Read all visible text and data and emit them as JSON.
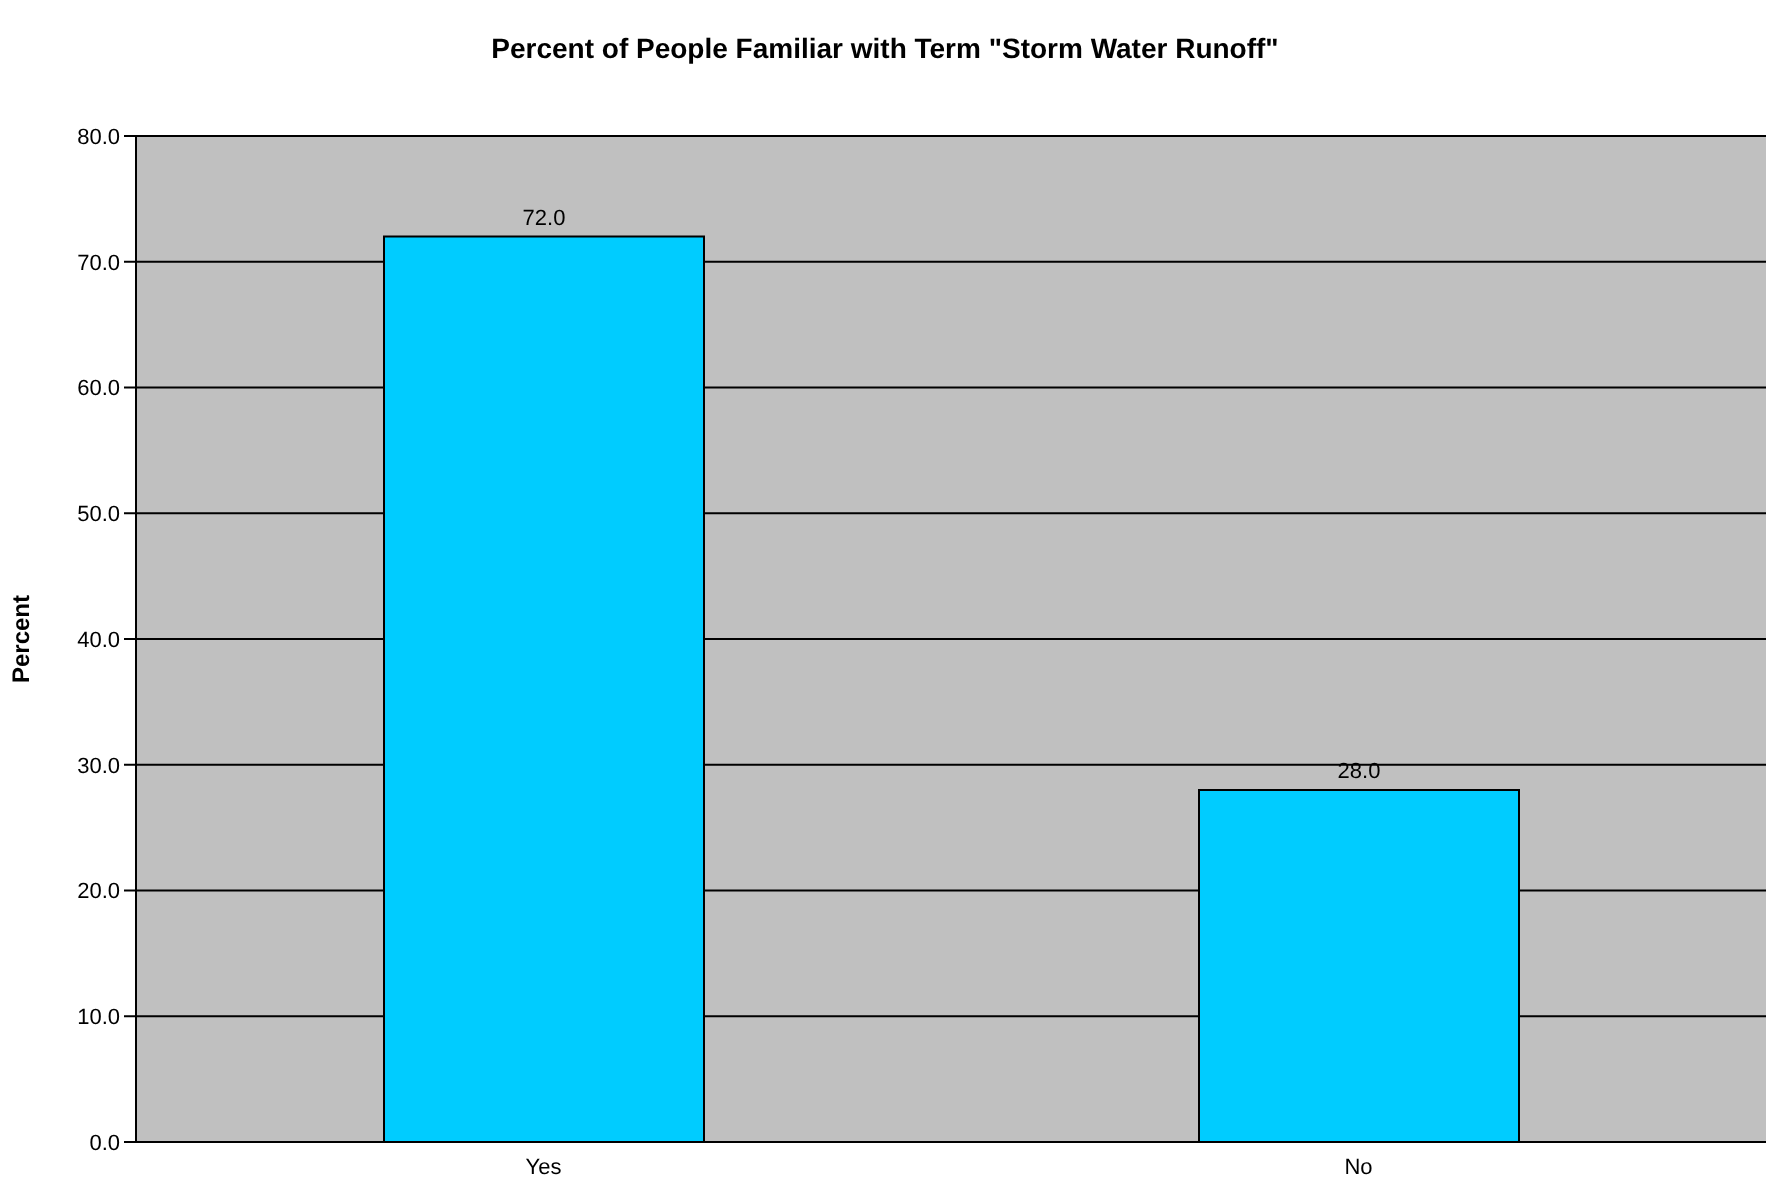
{
  "chart_data": {
    "type": "bar",
    "title": "Percent of People Familiar with Term \"Storm Water Runoff\"",
    "ylabel": "Percent",
    "categories": [
      "Yes",
      "No"
    ],
    "values": [
      72,
      28
    ],
    "color": "#00ccff",
    "value_labels": [
      "72.0",
      "28.0"
    ],
    "ylim": [
      0,
      80
    ],
    "yticks": [
      {
        "value": 0,
        "label": "0.0"
      },
      {
        "value": 10,
        "label": "10.0"
      },
      {
        "value": 20,
        "label": "20.0"
      },
      {
        "value": 30,
        "label": "30.0"
      },
      {
        "value": 40,
        "label": "40.0"
      },
      {
        "value": 50,
        "label": "50.0"
      },
      {
        "value": 60,
        "label": "60.0"
      },
      {
        "value": 70,
        "label": "70.0"
      },
      {
        "value": 80,
        "label": "80.0"
      }
    ],
    "grid": "y",
    "legend": false
  }
}
